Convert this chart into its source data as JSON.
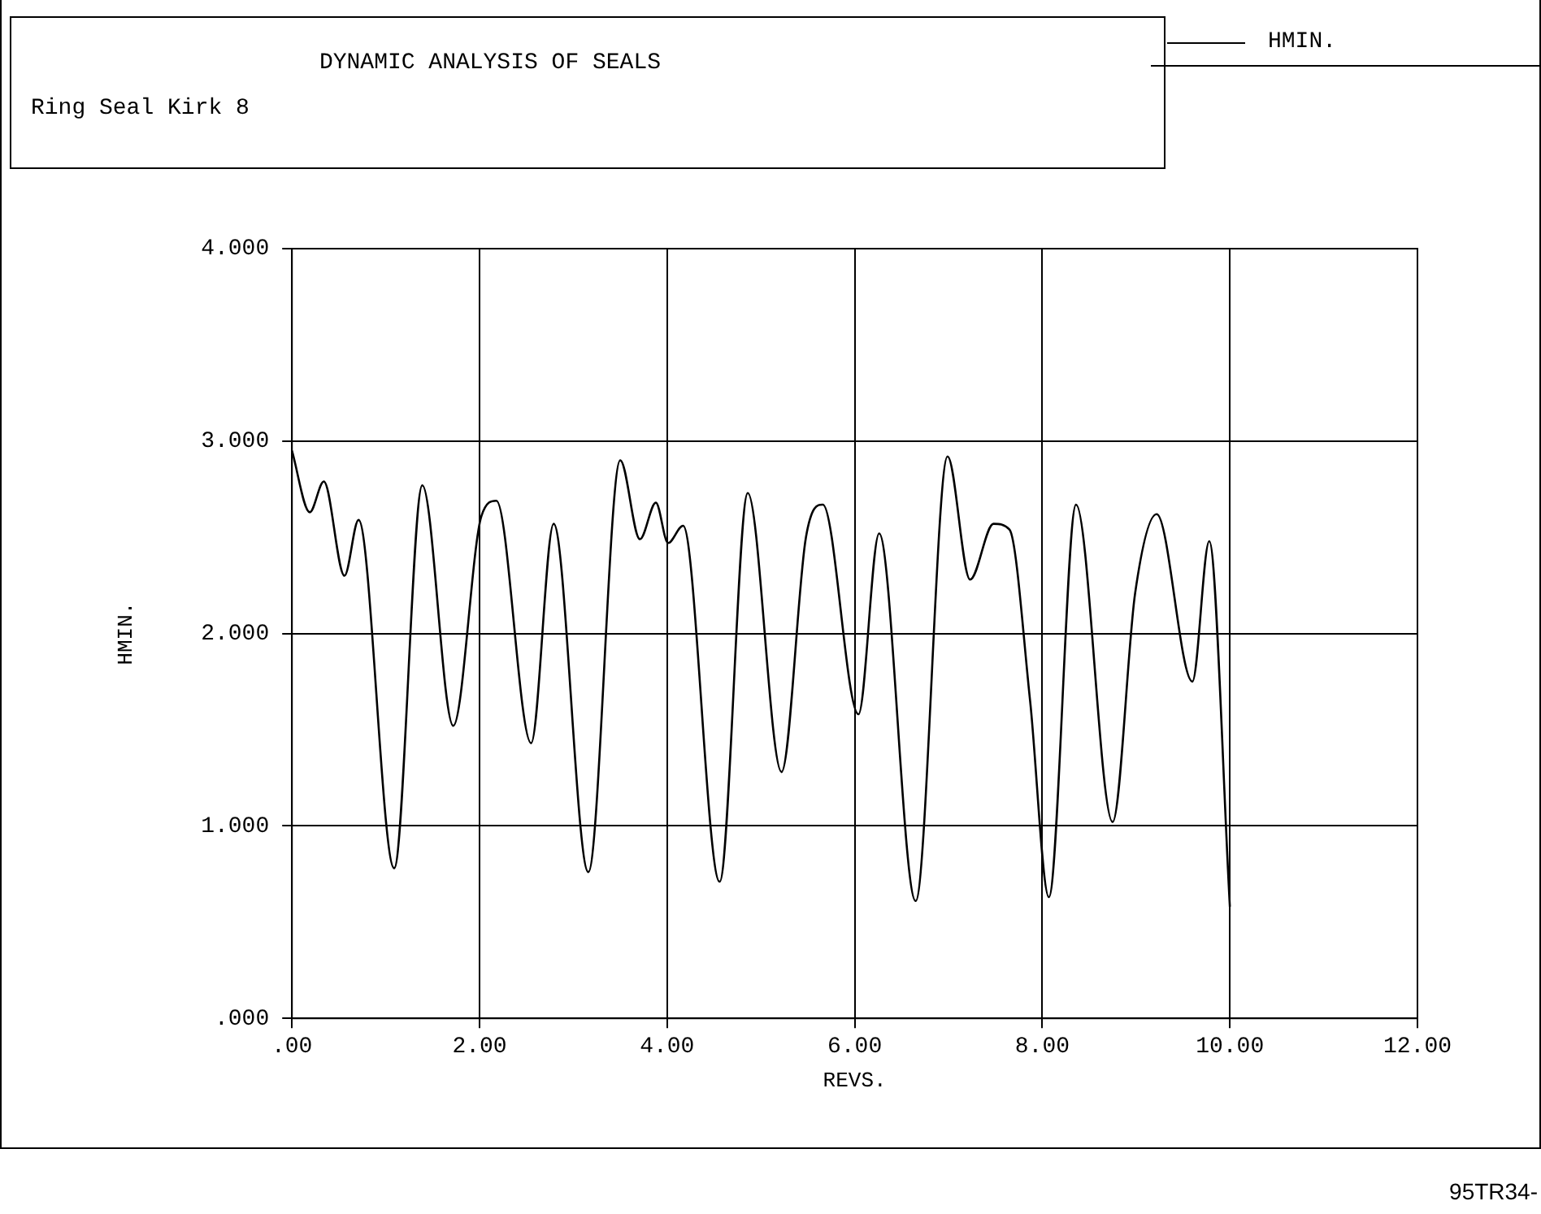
{
  "chart_data": {
    "type": "line",
    "title": "DYNAMIC ANALYSIS OF SEALS",
    "subtitle": "Ring Seal Kirk 8",
    "xlabel": "REVS.",
    "ylabel": "HMIN.",
    "x": [
      0,
      0.19,
      0.34,
      0.56,
      0.71,
      1.09,
      1.39,
      1.72,
      2.02,
      2.18,
      2.55,
      2.79,
      3.16,
      3.5,
      3.71,
      3.88,
      4.01,
      4.17,
      4.56,
      4.86,
      5.22,
      5.48,
      5.66,
      6.04,
      6.26,
      6.65,
      6.99,
      7.23,
      7.48,
      7.65,
      7.87,
      8.07,
      8.36,
      8.75,
      8.99,
      9.22,
      9.6,
      9.78,
      10.0
    ],
    "series": [
      {
        "name": "HMIN.",
        "color": "#000000",
        "values": [
          2.95,
          2.63,
          2.79,
          2.3,
          2.59,
          0.78,
          2.77,
          1.52,
          2.61,
          2.69,
          1.43,
          2.57,
          0.76,
          2.9,
          2.49,
          2.68,
          2.47,
          2.56,
          0.71,
          2.73,
          1.28,
          2.5,
          2.67,
          1.58,
          2.52,
          0.61,
          2.92,
          2.28,
          2.57,
          2.54,
          1.65,
          0.63,
          2.67,
          1.02,
          2.21,
          2.62,
          1.75,
          2.48,
          0.58
        ]
      }
    ],
    "xlim": [
      0,
      12
    ],
    "xticks": [
      {
        "value": 0,
        "label": ".00"
      },
      {
        "value": 2,
        "label": "2.00"
      },
      {
        "value": 4,
        "label": "4.00"
      },
      {
        "value": 6,
        "label": "6.00"
      },
      {
        "value": 8,
        "label": "8.00"
      },
      {
        "value": 10,
        "label": "10.00"
      },
      {
        "value": 12,
        "label": "12.00"
      }
    ],
    "ylim": [
      0,
      4
    ],
    "yticks": [
      {
        "value": 0,
        "label": ".000"
      },
      {
        "value": 1,
        "label": "1.000"
      },
      {
        "value": 2,
        "label": "2.000"
      },
      {
        "value": 3,
        "label": "3.000"
      },
      {
        "value": 4,
        "label": "4.000"
      }
    ],
    "grid": true,
    "legend": "top right",
    "marker": "none",
    "line_style": "solid",
    "annotations": [
      "95TR34-"
    ]
  }
}
